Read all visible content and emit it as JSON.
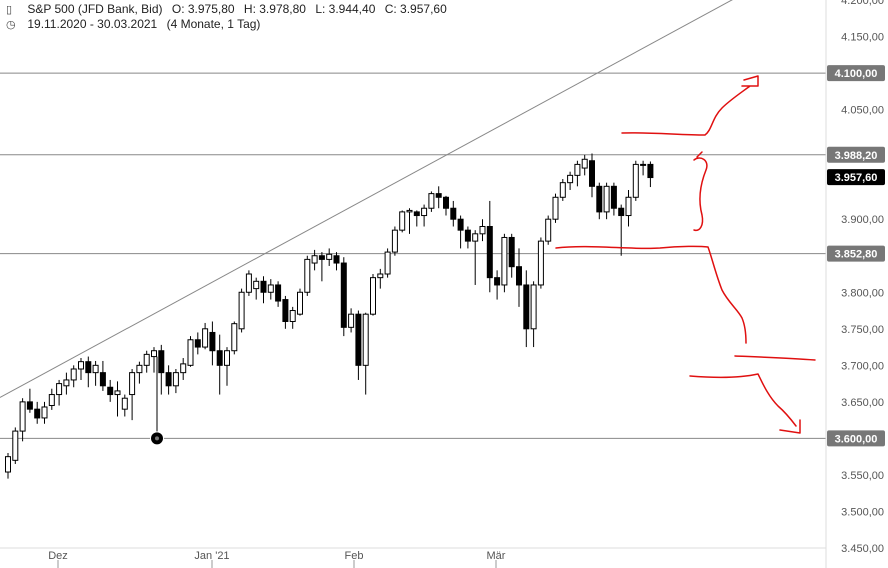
{
  "header": {
    "instrument": "S&P 500 (JFD Bank, Bid)",
    "open": "O: 3.975,80",
    "high": "H: 3.978,80",
    "low": "L: 3.944,40",
    "close": "C: 3.957,60",
    "range": "19.11.2020 - 30.03.2021",
    "period": "(4 Monate, 1 Tag)",
    "icons": [
      "candlestick-icon",
      "clock-icon"
    ]
  },
  "chart_data": {
    "type": "candlestick",
    "title": "S&P 500 (JFD Bank, Bid)",
    "x_range": [
      "19.11.2020",
      "30.03.2021"
    ],
    "x_ticks": [
      "Dez",
      "Jan '21",
      "Feb",
      "Mär"
    ],
    "ylim": [
      3450,
      4200
    ],
    "y_ticks": [
      {
        "value": 4200,
        "label": "4.200,00"
      },
      {
        "value": 4150,
        "label": "4.150,00"
      },
      {
        "value": 4100,
        "label": "4.100,00"
      },
      {
        "value": 4050,
        "label": "4.050,00"
      },
      {
        "value": 4000,
        "label": "4.000,00"
      },
      {
        "value": 3950,
        "label": "3.950,00"
      },
      {
        "value": 3900,
        "label": "3.900,00"
      },
      {
        "value": 3850,
        "label": "3.850,00"
      },
      {
        "value": 3800,
        "label": "3.800,00"
      },
      {
        "value": 3750,
        "label": "3.750,00"
      },
      {
        "value": 3700,
        "label": "3.700,00"
      },
      {
        "value": 3650,
        "label": "3.650,00"
      },
      {
        "value": 3600,
        "label": "3.600,00"
      },
      {
        "value": 3550,
        "label": "3.550,00"
      },
      {
        "value": 3500,
        "label": "3.500,00"
      },
      {
        "value": 3450,
        "label": "3.450,00"
      }
    ],
    "horizontal_levels": [
      {
        "value": 4100.0,
        "label": "4.100,00",
        "style": "grey"
      },
      {
        "value": 3988.2,
        "label": "3.988,20",
        "style": "grey"
      },
      {
        "value": 3957.6,
        "label": "3.957,60",
        "style": "current"
      },
      {
        "value": 3852.8,
        "label": "3.852,80",
        "style": "grey"
      },
      {
        "value": 3600.0,
        "label": "3.600,00",
        "style": "grey"
      }
    ],
    "trendline": {
      "from": [
        "19.11.2020",
        3656
      ],
      "to": [
        "30.03.2021",
        4212
      ]
    },
    "marker": {
      "date": "late Dec 2020",
      "value": 3600
    },
    "candles": [
      [
        3554,
        3575,
        3545,
        3580
      ],
      [
        3570,
        3610,
        3565,
        3615
      ],
      [
        3610,
        3650,
        3596,
        3655
      ],
      [
        3650,
        3640,
        3635,
        3668
      ],
      [
        3640,
        3628,
        3620,
        3650
      ],
      [
        3628,
        3643,
        3620,
        3650
      ],
      [
        3645,
        3660,
        3639,
        3668
      ],
      [
        3660,
        3675,
        3645,
        3680
      ],
      [
        3672,
        3680,
        3660,
        3690
      ],
      [
        3680,
        3695,
        3670,
        3700
      ],
      [
        3695,
        3705,
        3680,
        3710
      ],
      [
        3705,
        3690,
        3670,
        3712
      ],
      [
        3690,
        3700,
        3672,
        3706
      ],
      [
        3690,
        3672,
        3665,
        3706
      ],
      [
        3670,
        3660,
        3650,
        3680
      ],
      [
        3660,
        3665,
        3630,
        3678
      ],
      [
        3640,
        3655,
        3630,
        3660
      ],
      [
        3660,
        3690,
        3625,
        3695
      ],
      [
        3690,
        3700,
        3675,
        3705
      ],
      [
        3700,
        3715,
        3690,
        3720
      ],
      [
        3712,
        3720,
        3690,
        3725
      ],
      [
        3720,
        3690,
        3660,
        3728
      ],
      [
        3690,
        3672,
        3660,
        3700
      ],
      [
        3672,
        3690,
        3662,
        3695
      ],
      [
        3690,
        3702,
        3680,
        3710
      ],
      [
        3700,
        3735,
        3698,
        3740
      ],
      [
        3735,
        3725,
        3715,
        3745
      ],
      [
        3725,
        3750,
        3722,
        3758
      ],
      [
        3745,
        3720,
        3700,
        3760
      ],
      [
        3720,
        3700,
        3660,
        3742
      ],
      [
        3700,
        3720,
        3672,
        3725
      ],
      [
        3720,
        3757,
        3715,
        3760
      ],
      [
        3750,
        3800,
        3745,
        3805
      ],
      [
        3800,
        3825,
        3795,
        3830
      ],
      [
        3805,
        3815,
        3790,
        3820
      ],
      [
        3815,
        3800,
        3785,
        3822
      ],
      [
        3800,
        3810,
        3790,
        3818
      ],
      [
        3810,
        3788,
        3780,
        3815
      ],
      [
        3790,
        3760,
        3750,
        3795
      ],
      [
        3760,
        3775,
        3750,
        3780
      ],
      [
        3770,
        3800,
        3768,
        3805
      ],
      [
        3800,
        3845,
        3795,
        3850
      ],
      [
        3840,
        3850,
        3830,
        3858
      ],
      [
        3850,
        3845,
        3815,
        3855
      ],
      [
        3845,
        3852,
        3836,
        3860
      ],
      [
        3850,
        3840,
        3830,
        3855
      ],
      [
        3840,
        3752,
        3740,
        3848
      ],
      [
        3752,
        3770,
        3745,
        3778
      ],
      [
        3770,
        3700,
        3680,
        3775
      ],
      [
        3700,
        3770,
        3660,
        3772
      ],
      [
        3770,
        3820,
        3768,
        3825
      ],
      [
        3820,
        3825,
        3805,
        3832
      ],
      [
        3825,
        3855,
        3820,
        3860
      ],
      [
        3855,
        3885,
        3850,
        3890
      ],
      [
        3885,
        3910,
        3882,
        3912
      ],
      [
        3910,
        3912,
        3880,
        3915
      ],
      [
        3910,
        3905,
        3890,
        3912
      ],
      [
        3905,
        3915,
        3890,
        3920
      ],
      [
        3915,
        3935,
        3910,
        3938
      ],
      [
        3935,
        3930,
        3915,
        3945
      ],
      [
        3930,
        3915,
        3905,
        3932
      ],
      [
        3915,
        3900,
        3890,
        3925
      ],
      [
        3900,
        3885,
        3860,
        3905
      ],
      [
        3885,
        3870,
        3860,
        3890
      ],
      [
        3870,
        3880,
        3810,
        3885
      ],
      [
        3880,
        3890,
        3870,
        3900
      ],
      [
        3890,
        3820,
        3800,
        3925
      ],
      [
        3820,
        3810,
        3790,
        3830
      ],
      [
        3810,
        3875,
        3800,
        3880
      ],
      [
        3875,
        3835,
        3820,
        3880
      ],
      [
        3835,
        3810,
        3780,
        3860
      ],
      [
        3810,
        3750,
        3725,
        3830
      ],
      [
        3750,
        3810,
        3725,
        3815
      ],
      [
        3810,
        3870,
        3805,
        3875
      ],
      [
        3870,
        3900,
        3865,
        3905
      ],
      [
        3900,
        3930,
        3895,
        3935
      ],
      [
        3930,
        3950,
        3925,
        3955
      ],
      [
        3950,
        3960,
        3940,
        3965
      ],
      [
        3960,
        3975,
        3945,
        3980
      ],
      [
        3970,
        3982,
        3960,
        3988
      ],
      [
        3980,
        3945,
        3930,
        3990
      ],
      [
        3945,
        3910,
        3900,
        3950
      ],
      [
        3910,
        3945,
        3900,
        3950
      ],
      [
        3945,
        3915,
        3905,
        3950
      ],
      [
        3915,
        3905,
        3850,
        3920
      ],
      [
        3905,
        3930,
        3890,
        3940
      ],
      [
        3930,
        3975,
        3925,
        3980
      ],
      [
        3975,
        3975,
        3960,
        3980
      ],
      [
        3975,
        3957,
        3944,
        3979
      ]
    ]
  },
  "annotations": {
    "color": "#e01010",
    "description_free": true
  }
}
